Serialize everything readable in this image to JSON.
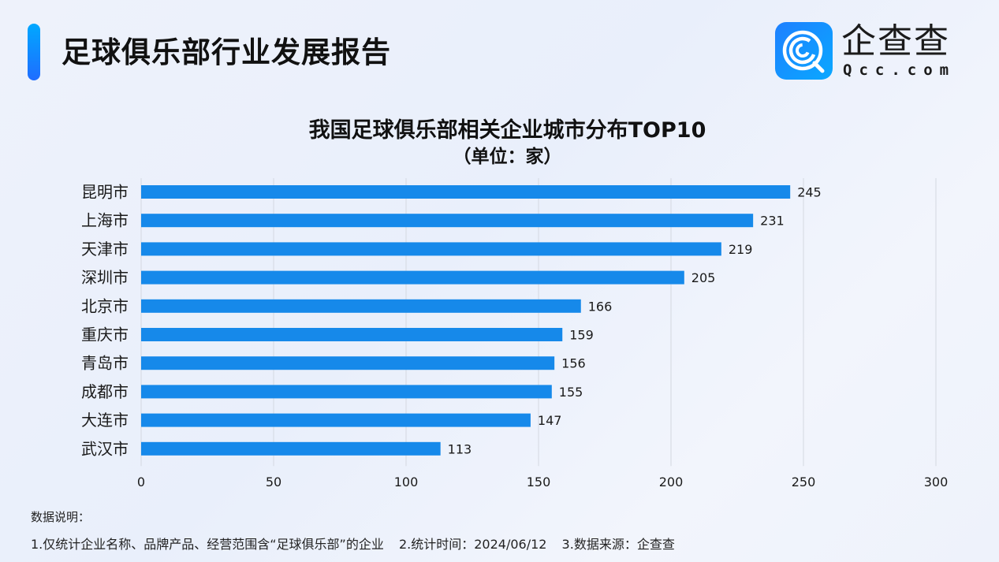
{
  "header": {
    "title": "足球俱乐部行业发展报告",
    "logo_cn": "企查查",
    "logo_en": "Qcc.com"
  },
  "colors": {
    "accent": "#1f6dff",
    "bar": "#1689ea",
    "grid": "#d4d8e0"
  },
  "chart_data": {
    "type": "bar",
    "orientation": "horizontal",
    "title": "我国足球俱乐部相关企业城市分布TOP10",
    "subtitle": "（单位：家）",
    "categories": [
      "昆明市",
      "上海市",
      "天津市",
      "深圳市",
      "北京市",
      "重庆市",
      "青岛市",
      "成都市",
      "大连市",
      "武汉市"
    ],
    "values": [
      245,
      231,
      219,
      205,
      166,
      159,
      156,
      155,
      147,
      113
    ],
    "xlabel": "",
    "ylabel": "",
    "xlim": [
      0,
      300
    ],
    "xticks": [
      0,
      50,
      100,
      150,
      200,
      250,
      300
    ],
    "grid": true,
    "data_labels": true
  },
  "notes": {
    "title": "数据说明：",
    "items": [
      "1.仅统计企业名称、品牌产品、经营范围含“足球俱乐部”的企业",
      "2.统计时间：2024/06/12",
      "3.数据来源：企查查"
    ]
  }
}
